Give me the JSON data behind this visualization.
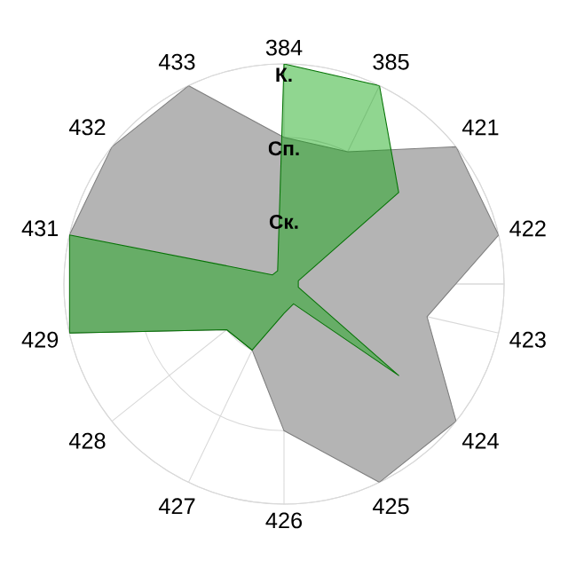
{
  "chart_data": {
    "type": "radar",
    "categories": [
      "384",
      "385",
      "421",
      "422",
      "423",
      "424",
      "425",
      "426",
      "427",
      "428",
      "429",
      "431",
      "432",
      "433"
    ],
    "ylim": [
      0,
      3
    ],
    "yticks": [
      {
        "value": 1,
        "label": "Ск."
      },
      {
        "value": 2,
        "label": "Сп."
      },
      {
        "value": 3,
        "label": "К."
      }
    ],
    "grid": true,
    "marker": "none",
    "series": [
      {
        "color": "#b4b4b4",
        "values": [
          2,
          2,
          3,
          3,
          2,
          3,
          3,
          2,
          1,
          1,
          3,
          3,
          3,
          3
        ]
      },
      {
        "color": "#08a408",
        "values": [
          3,
          3,
          2,
          0.2,
          0.2,
          2,
          0.3,
          0.4,
          1,
          1,
          3,
          3,
          0.2,
          0.2
        ]
      }
    ]
  }
}
